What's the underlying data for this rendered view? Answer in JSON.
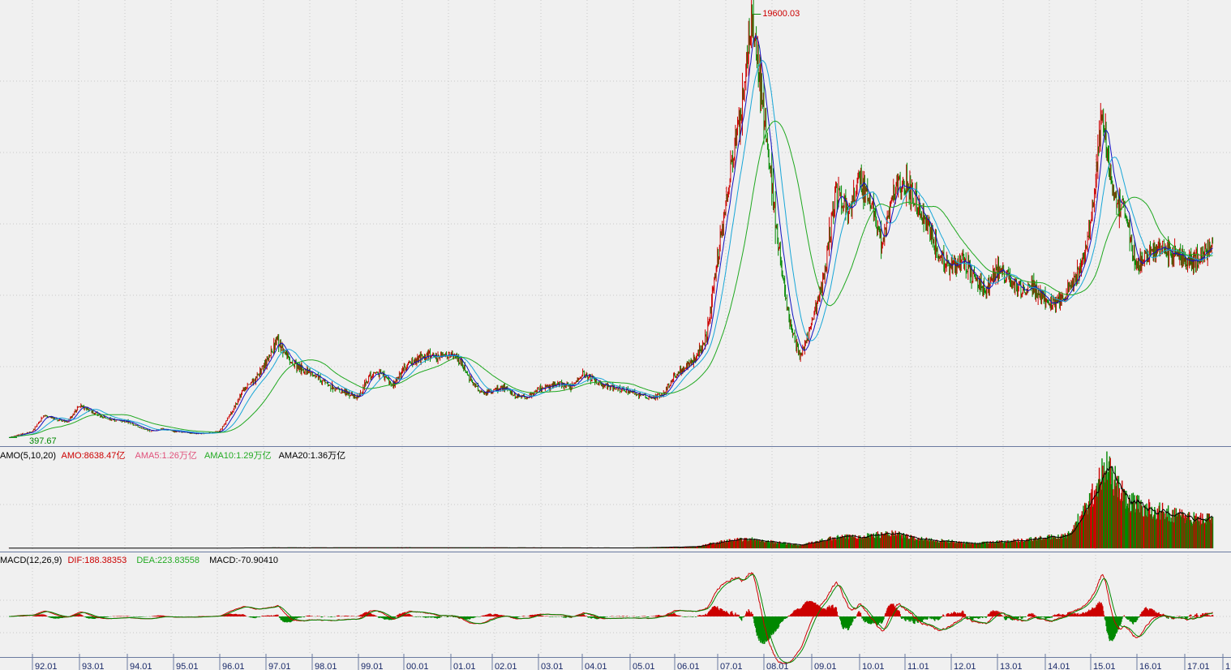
{
  "chart_data": [
    {
      "type": "candlestick",
      "panel": "price",
      "annotations": {
        "high_label": "19600.03",
        "low_label": "397.67"
      },
      "overview_close": [
        {
          "x": "91.07",
          "y": 420
        },
        {
          "x": "92.01",
          "y": 700
        },
        {
          "x": "92.04",
          "y": 1400
        },
        {
          "x": "92.07",
          "y": 1250
        },
        {
          "x": "92.10",
          "y": 1100
        },
        {
          "x": "93.01",
          "y": 1850
        },
        {
          "x": "93.04",
          "y": 1600
        },
        {
          "x": "93.07",
          "y": 1300
        },
        {
          "x": "93.10",
          "y": 1200
        },
        {
          "x": "94.01",
          "y": 1150
        },
        {
          "x": "94.04",
          "y": 900
        },
        {
          "x": "94.07",
          "y": 700
        },
        {
          "x": "94.10",
          "y": 800
        },
        {
          "x": "95.01",
          "y": 700
        },
        {
          "x": "95.04",
          "y": 650
        },
        {
          "x": "95.07",
          "y": 600
        },
        {
          "x": "95.10",
          "y": 620
        },
        {
          "x": "96.01",
          "y": 700
        },
        {
          "x": "96.04",
          "y": 1500
        },
        {
          "x": "96.07",
          "y": 2500
        },
        {
          "x": "96.10",
          "y": 3000
        },
        {
          "x": "97.01",
          "y": 3800
        },
        {
          "x": "97.04",
          "y": 4800
        },
        {
          "x": "97.07",
          "y": 3900
        },
        {
          "x": "97.10",
          "y": 3500
        },
        {
          "x": "98.01",
          "y": 3300
        },
        {
          "x": "98.04",
          "y": 2900
        },
        {
          "x": "98.07",
          "y": 2600
        },
        {
          "x": "98.10",
          "y": 2400
        },
        {
          "x": "99.01",
          "y": 2200
        },
        {
          "x": "99.04",
          "y": 3200
        },
        {
          "x": "99.07",
          "y": 3300
        },
        {
          "x": "99.10",
          "y": 2700
        },
        {
          "x": "00.01",
          "y": 3500
        },
        {
          "x": "00.04",
          "y": 3900
        },
        {
          "x": "00.07",
          "y": 4100
        },
        {
          "x": "00.10",
          "y": 4000
        },
        {
          "x": "01.01",
          "y": 4200
        },
        {
          "x": "01.04",
          "y": 3800
        },
        {
          "x": "01.07",
          "y": 2900
        },
        {
          "x": "01.10",
          "y": 2400
        },
        {
          "x": "02.01",
          "y": 2500
        },
        {
          "x": "02.04",
          "y": 2700
        },
        {
          "x": "02.07",
          "y": 2300
        },
        {
          "x": "02.10",
          "y": 2200
        },
        {
          "x": "03.01",
          "y": 2600
        },
        {
          "x": "03.04",
          "y": 2700
        },
        {
          "x": "03.07",
          "y": 2800
        },
        {
          "x": "03.10",
          "y": 2700
        },
        {
          "x": "04.01",
          "y": 3300
        },
        {
          "x": "04.04",
          "y": 3000
        },
        {
          "x": "04.07",
          "y": 2700
        },
        {
          "x": "04.10",
          "y": 2600
        },
        {
          "x": "05.01",
          "y": 2500
        },
        {
          "x": "05.04",
          "y": 2300
        },
        {
          "x": "05.07",
          "y": 2200
        },
        {
          "x": "05.10",
          "y": 2400
        },
        {
          "x": "06.01",
          "y": 3200
        },
        {
          "x": "06.04",
          "y": 3600
        },
        {
          "x": "06.07",
          "y": 4000
        },
        {
          "x": "06.10",
          "y": 5000
        },
        {
          "x": "07.01",
          "y": 8500
        },
        {
          "x": "07.04",
          "y": 12000
        },
        {
          "x": "07.07",
          "y": 15000
        },
        {
          "x": "07.10",
          "y": 19600
        },
        {
          "x": "08.01",
          "y": 15000
        },
        {
          "x": "08.04",
          "y": 10000
        },
        {
          "x": "08.07",
          "y": 6000
        },
        {
          "x": "08.10",
          "y": 4000
        },
        {
          "x": "09.01",
          "y": 5500
        },
        {
          "x": "09.04",
          "y": 7500
        },
        {
          "x": "09.07",
          "y": 11500
        },
        {
          "x": "09.10",
          "y": 10500
        },
        {
          "x": "10.01",
          "y": 12000
        },
        {
          "x": "10.04",
          "y": 11000
        },
        {
          "x": "10.07",
          "y": 9000
        },
        {
          "x": "10.10",
          "y": 11500
        },
        {
          "x": "11.01",
          "y": 11800
        },
        {
          "x": "11.04",
          "y": 11000
        },
        {
          "x": "11.07",
          "y": 10000
        },
        {
          "x": "11.10",
          "y": 8500
        },
        {
          "x": "12.01",
          "y": 8000
        },
        {
          "x": "12.04",
          "y": 8500
        },
        {
          "x": "12.07",
          "y": 7500
        },
        {
          "x": "12.10",
          "y": 7000
        },
        {
          "x": "13.01",
          "y": 8000
        },
        {
          "x": "13.04",
          "y": 7500
        },
        {
          "x": "13.07",
          "y": 7000
        },
        {
          "x": "13.10",
          "y": 7200
        },
        {
          "x": "14.01",
          "y": 6500
        },
        {
          "x": "14.04",
          "y": 6400
        },
        {
          "x": "14.07",
          "y": 7000
        },
        {
          "x": "14.10",
          "y": 7800
        },
        {
          "x": "15.01",
          "y": 10000
        },
        {
          "x": "15.04",
          "y": 15000
        },
        {
          "x": "15.07",
          "y": 11000
        },
        {
          "x": "15.10",
          "y": 10500
        },
        {
          "x": "16.01",
          "y": 8000
        },
        {
          "x": "16.04",
          "y": 8700
        },
        {
          "x": "16.07",
          "y": 8900
        },
        {
          "x": "16.10",
          "y": 8700
        },
        {
          "x": "17.01",
          "y": 8500
        },
        {
          "x": "17.04",
          "y": 8300
        },
        {
          "x": "17.07",
          "y": 8700
        },
        {
          "x": "17.10",
          "y": 9200
        }
      ]
    },
    {
      "type": "bar",
      "panel": "volume",
      "indicator_label": "AMO(5,10,20)",
      "legend": [
        {
          "text": "AMO:8638.47亿",
          "color": "#cc0000"
        },
        {
          "text": "AMA5:1.26万亿",
          "color": "#e0507a"
        },
        {
          "text": "AMA10:1.29万亿",
          "color": "#22aa22"
        },
        {
          "text": "AMA20:1.36万亿",
          "color": "#000000"
        }
      ],
      "overview_amount": [
        {
          "x": "92.01",
          "y": 0.02
        },
        {
          "x": "96.01",
          "y": 0.03
        },
        {
          "x": "97.01",
          "y": 0.06
        },
        {
          "x": "00.01",
          "y": 0.08
        },
        {
          "x": "05.01",
          "y": 0.05
        },
        {
          "x": "06.07",
          "y": 0.2
        },
        {
          "x": "07.04",
          "y": 1.0
        },
        {
          "x": "07.10",
          "y": 1.1
        },
        {
          "x": "08.10",
          "y": 0.4
        },
        {
          "x": "09.07",
          "y": 1.3
        },
        {
          "x": "10.10",
          "y": 1.8
        },
        {
          "x": "11.04",
          "y": 1.2
        },
        {
          "x": "12.07",
          "y": 0.6
        },
        {
          "x": "13.07",
          "y": 1.0
        },
        {
          "x": "14.07",
          "y": 1.6
        },
        {
          "x": "14.12",
          "y": 5.0
        },
        {
          "x": "15.05",
          "y": 10.2
        },
        {
          "x": "15.10",
          "y": 6.0
        },
        {
          "x": "16.04",
          "y": 4.8
        },
        {
          "x": "17.04",
          "y": 3.6
        },
        {
          "x": "17.12",
          "y": 3.5
        }
      ]
    },
    {
      "type": "bar",
      "panel": "macd",
      "indicator_label": "MACD(12,26,9)",
      "legend": [
        {
          "text": "DIF:188.38353",
          "color": "#cc0000"
        },
        {
          "text": "DEA:223.83558",
          "color": "#22aa22"
        },
        {
          "text": "MACD:-70.90410",
          "color": "#000000"
        }
      ]
    },
    {
      "type": "axis",
      "categories": [
        "92.01",
        "93.01",
        "94.01",
        "95.01",
        "96.01",
        "97.01",
        "98.01",
        "99.01",
        "00.01",
        "01.01",
        "02.01",
        "03.01",
        "04.01",
        "05.01",
        "06.01",
        "07.01",
        "08.01",
        "09.01",
        "10.01",
        "11.01",
        "12.01",
        "13.01",
        "14.01",
        "15.01",
        "16.01",
        "17.01",
        "1"
      ]
    }
  ],
  "colors": {
    "background": "#f0f0f0",
    "up": "#cc0000",
    "down": "#008800",
    "ma_fast": "#1010c0",
    "ma_mid": "#17a6d8",
    "ma_slow": "#1fa81f",
    "grid": "#c8c8c8",
    "axis": "#6a7aa0"
  }
}
